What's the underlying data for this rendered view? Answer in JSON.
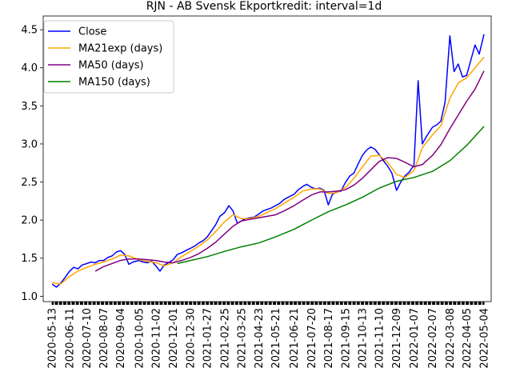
{
  "chart_data": {
    "type": "line",
    "title": "RJN - AB Svensk Ekportkredit: interval=1d",
    "xlabel": "",
    "ylabel": "",
    "ylim": [
      0.93,
      4.68
    ],
    "xrange": [
      "2020-04-28",
      "2022-05-16"
    ],
    "yticks": [
      1.0,
      1.5,
      2.0,
      2.5,
      3.0,
      3.5,
      4.0,
      4.5
    ],
    "xticks": [
      "2020-05-13",
      "2020-06-11",
      "2020-07-10",
      "2020-08-07",
      "2020-09-04",
      "2020-10-05",
      "2020-11-02",
      "2020-12-01",
      "2020-12-30",
      "2021-01-27",
      "2021-02-25",
      "2021-03-25",
      "2021-04-23",
      "2021-05-21",
      "2021-06-21",
      "2021-07-20",
      "2021-08-17",
      "2021-09-15",
      "2021-10-13",
      "2021-11-10",
      "2021-12-09",
      "2022-01-07",
      "2022-02-07",
      "2022-03-08",
      "2022-04-05",
      "2022-05-04"
    ],
    "legend_location": "upper-left",
    "grid": false,
    "series": [
      {
        "name": "Close",
        "color": "#0000ff",
        "points": [
          [
            "2020-05-13",
            1.16
          ],
          [
            "2020-05-20",
            1.12
          ],
          [
            "2020-05-27",
            1.17
          ],
          [
            "2020-06-03",
            1.24
          ],
          [
            "2020-06-11",
            1.33
          ],
          [
            "2020-06-18",
            1.38
          ],
          [
            "2020-06-25",
            1.36
          ],
          [
            "2020-07-02",
            1.41
          ],
          [
            "2020-07-10",
            1.43
          ],
          [
            "2020-07-17",
            1.45
          ],
          [
            "2020-07-24",
            1.44
          ],
          [
            "2020-07-31",
            1.47
          ],
          [
            "2020-08-07",
            1.47
          ],
          [
            "2020-08-14",
            1.51
          ],
          [
            "2020-08-21",
            1.53
          ],
          [
            "2020-08-28",
            1.58
          ],
          [
            "2020-09-04",
            1.6
          ],
          [
            "2020-09-11",
            1.55
          ],
          [
            "2020-09-18",
            1.42
          ],
          [
            "2020-09-25",
            1.45
          ],
          [
            "2020-10-05",
            1.47
          ],
          [
            "2020-10-12",
            1.45
          ],
          [
            "2020-10-19",
            1.44
          ],
          [
            "2020-10-26",
            1.46
          ],
          [
            "2020-11-02",
            1.4
          ],
          [
            "2020-11-09",
            1.33
          ],
          [
            "2020-11-16",
            1.41
          ],
          [
            "2020-11-23",
            1.44
          ],
          [
            "2020-12-01",
            1.48
          ],
          [
            "2020-12-08",
            1.55
          ],
          [
            "2020-12-15",
            1.57
          ],
          [
            "2020-12-22",
            1.6
          ],
          [
            "2020-12-30",
            1.63
          ],
          [
            "2021-01-06",
            1.66
          ],
          [
            "2021-01-13",
            1.7
          ],
          [
            "2021-01-20",
            1.73
          ],
          [
            "2021-01-27",
            1.78
          ],
          [
            "2021-02-03",
            1.86
          ],
          [
            "2021-02-10",
            1.94
          ],
          [
            "2021-02-17",
            2.05
          ],
          [
            "2021-02-25",
            2.1
          ],
          [
            "2021-03-04",
            2.19
          ],
          [
            "2021-03-11",
            2.12
          ],
          [
            "2021-03-18",
            1.96
          ],
          [
            "2021-03-25",
            1.99
          ],
          [
            "2021-04-01",
            2.02
          ],
          [
            "2021-04-08",
            2.03
          ],
          [
            "2021-04-15",
            2.04
          ],
          [
            "2021-04-23",
            2.08
          ],
          [
            "2021-04-30",
            2.12
          ],
          [
            "2021-05-07",
            2.14
          ],
          [
            "2021-05-14",
            2.16
          ],
          [
            "2021-05-21",
            2.19
          ],
          [
            "2021-05-28",
            2.22
          ],
          [
            "2021-06-04",
            2.27
          ],
          [
            "2021-06-11",
            2.3
          ],
          [
            "2021-06-21",
            2.34
          ],
          [
            "2021-06-28",
            2.4
          ],
          [
            "2021-07-05",
            2.44
          ],
          [
            "2021-07-12",
            2.47
          ],
          [
            "2021-07-20",
            2.43
          ],
          [
            "2021-07-27",
            2.41
          ],
          [
            "2021-08-03",
            2.42
          ],
          [
            "2021-08-10",
            2.39
          ],
          [
            "2021-08-17",
            2.2
          ],
          [
            "2021-08-24",
            2.34
          ],
          [
            "2021-08-31",
            2.37
          ],
          [
            "2021-09-07",
            2.38
          ],
          [
            "2021-09-15",
            2.5
          ],
          [
            "2021-09-22",
            2.58
          ],
          [
            "2021-09-29",
            2.62
          ],
          [
            "2021-10-06",
            2.74
          ],
          [
            "2021-10-13",
            2.85
          ],
          [
            "2021-10-20",
            2.92
          ],
          [
            "2021-10-27",
            2.96
          ],
          [
            "2021-11-03",
            2.93
          ],
          [
            "2021-11-10",
            2.86
          ],
          [
            "2021-11-17",
            2.78
          ],
          [
            "2021-11-24",
            2.71
          ],
          [
            "2021-12-01",
            2.62
          ],
          [
            "2021-12-09",
            2.39
          ],
          [
            "2021-12-16",
            2.5
          ],
          [
            "2021-12-23",
            2.58
          ],
          [
            "2021-12-30",
            2.63
          ],
          [
            "2022-01-07",
            2.72
          ],
          [
            "2022-01-14",
            3.83
          ],
          [
            "2022-01-21",
            3.0
          ],
          [
            "2022-01-28",
            3.1
          ],
          [
            "2022-02-07",
            3.22
          ],
          [
            "2022-02-14",
            3.25
          ],
          [
            "2022-02-21",
            3.3
          ],
          [
            "2022-02-28",
            3.55
          ],
          [
            "2022-03-08",
            4.42
          ],
          [
            "2022-03-15",
            3.95
          ],
          [
            "2022-03-22",
            4.05
          ],
          [
            "2022-03-29",
            3.88
          ],
          [
            "2022-04-05",
            3.9
          ],
          [
            "2022-04-12",
            4.1
          ],
          [
            "2022-04-19",
            4.3
          ],
          [
            "2022-04-26",
            4.18
          ],
          [
            "2022-05-04",
            4.44
          ]
        ]
      },
      {
        "name": "MA21exp (days)",
        "color": "#ffa500",
        "points": [
          [
            "2020-05-13",
            1.18
          ],
          [
            "2020-05-27",
            1.16
          ],
          [
            "2020-06-11",
            1.26
          ],
          [
            "2020-06-25",
            1.33
          ],
          [
            "2020-07-10",
            1.38
          ],
          [
            "2020-07-24",
            1.42
          ],
          [
            "2020-08-07",
            1.45
          ],
          [
            "2020-08-21",
            1.49
          ],
          [
            "2020-09-04",
            1.54
          ],
          [
            "2020-09-18",
            1.53
          ],
          [
            "2020-10-05",
            1.48
          ],
          [
            "2020-10-19",
            1.46
          ],
          [
            "2020-11-02",
            1.44
          ],
          [
            "2020-11-16",
            1.4
          ],
          [
            "2020-12-01",
            1.44
          ],
          [
            "2020-12-15",
            1.52
          ],
          [
            "2020-12-30",
            1.59
          ],
          [
            "2021-01-13",
            1.66
          ],
          [
            "2021-01-27",
            1.74
          ],
          [
            "2021-02-10",
            1.85
          ],
          [
            "2021-02-25",
            1.98
          ],
          [
            "2021-03-11",
            2.07
          ],
          [
            "2021-03-25",
            2.02
          ],
          [
            "2021-04-08",
            2.02
          ],
          [
            "2021-04-23",
            2.05
          ],
          [
            "2021-05-07",
            2.1
          ],
          [
            "2021-05-21",
            2.15
          ],
          [
            "2021-06-04",
            2.22
          ],
          [
            "2021-06-21",
            2.3
          ],
          [
            "2021-07-05",
            2.38
          ],
          [
            "2021-07-20",
            2.41
          ],
          [
            "2021-08-03",
            2.41
          ],
          [
            "2021-08-17",
            2.35
          ],
          [
            "2021-08-31",
            2.36
          ],
          [
            "2021-09-15",
            2.43
          ],
          [
            "2021-09-29",
            2.55
          ],
          [
            "2021-10-13",
            2.7
          ],
          [
            "2021-10-27",
            2.84
          ],
          [
            "2021-11-10",
            2.85
          ],
          [
            "2021-11-24",
            2.76
          ],
          [
            "2021-12-09",
            2.6
          ],
          [
            "2021-12-23",
            2.56
          ],
          [
            "2022-01-07",
            2.65
          ],
          [
            "2022-01-21",
            2.95
          ],
          [
            "2022-02-07",
            3.12
          ],
          [
            "2022-02-21",
            3.24
          ],
          [
            "2022-03-08",
            3.6
          ],
          [
            "2022-03-22",
            3.8
          ],
          [
            "2022-04-05",
            3.87
          ],
          [
            "2022-04-19",
            4.0
          ],
          [
            "2022-05-04",
            4.14
          ]
        ]
      },
      {
        "name": "MA50 (days)",
        "color": "#800080",
        "points": [
          [
            "2020-07-24",
            1.33
          ],
          [
            "2020-08-07",
            1.39
          ],
          [
            "2020-08-21",
            1.43
          ],
          [
            "2020-09-04",
            1.47
          ],
          [
            "2020-09-18",
            1.49
          ],
          [
            "2020-10-05",
            1.49
          ],
          [
            "2020-10-19",
            1.48
          ],
          [
            "2020-11-02",
            1.47
          ],
          [
            "2020-11-16",
            1.45
          ],
          [
            "2020-12-01",
            1.44
          ],
          [
            "2020-12-15",
            1.47
          ],
          [
            "2020-12-30",
            1.51
          ],
          [
            "2021-01-13",
            1.56
          ],
          [
            "2021-01-27",
            1.63
          ],
          [
            "2021-02-10",
            1.71
          ],
          [
            "2021-02-25",
            1.82
          ],
          [
            "2021-03-11",
            1.92
          ],
          [
            "2021-03-25",
            1.99
          ],
          [
            "2021-04-08",
            2.01
          ],
          [
            "2021-04-23",
            2.03
          ],
          [
            "2021-05-07",
            2.05
          ],
          [
            "2021-05-21",
            2.07
          ],
          [
            "2021-06-04",
            2.12
          ],
          [
            "2021-06-21",
            2.19
          ],
          [
            "2021-07-05",
            2.26
          ],
          [
            "2021-07-20",
            2.33
          ],
          [
            "2021-08-03",
            2.37
          ],
          [
            "2021-08-17",
            2.37
          ],
          [
            "2021-08-31",
            2.38
          ],
          [
            "2021-09-15",
            2.4
          ],
          [
            "2021-09-29",
            2.46
          ],
          [
            "2021-10-13",
            2.55
          ],
          [
            "2021-10-27",
            2.66
          ],
          [
            "2021-11-10",
            2.77
          ],
          [
            "2021-11-24",
            2.82
          ],
          [
            "2021-12-09",
            2.81
          ],
          [
            "2021-12-23",
            2.76
          ],
          [
            "2022-01-07",
            2.7
          ],
          [
            "2022-01-21",
            2.73
          ],
          [
            "2022-02-07",
            2.85
          ],
          [
            "2022-02-21",
            2.99
          ],
          [
            "2022-03-08",
            3.2
          ],
          [
            "2022-03-22",
            3.38
          ],
          [
            "2022-04-05",
            3.56
          ],
          [
            "2022-04-19",
            3.72
          ],
          [
            "2022-05-04",
            3.96
          ]
        ]
      },
      {
        "name": "MA150 (days)",
        "color": "#008000",
        "points": [
          [
            "2020-12-08",
            1.43
          ],
          [
            "2020-12-30",
            1.47
          ],
          [
            "2021-01-27",
            1.52
          ],
          [
            "2021-02-25",
            1.59
          ],
          [
            "2021-03-25",
            1.65
          ],
          [
            "2021-04-23",
            1.7
          ],
          [
            "2021-05-21",
            1.78
          ],
          [
            "2021-06-21",
            1.88
          ],
          [
            "2021-07-20",
            2.0
          ],
          [
            "2021-08-17",
            2.11
          ],
          [
            "2021-09-15",
            2.2
          ],
          [
            "2021-10-13",
            2.3
          ],
          [
            "2021-11-10",
            2.42
          ],
          [
            "2021-12-09",
            2.51
          ],
          [
            "2022-01-07",
            2.56
          ],
          [
            "2022-02-07",
            2.64
          ],
          [
            "2022-03-08",
            2.78
          ],
          [
            "2022-04-05",
            2.98
          ],
          [
            "2022-05-04",
            3.23
          ]
        ]
      }
    ]
  }
}
